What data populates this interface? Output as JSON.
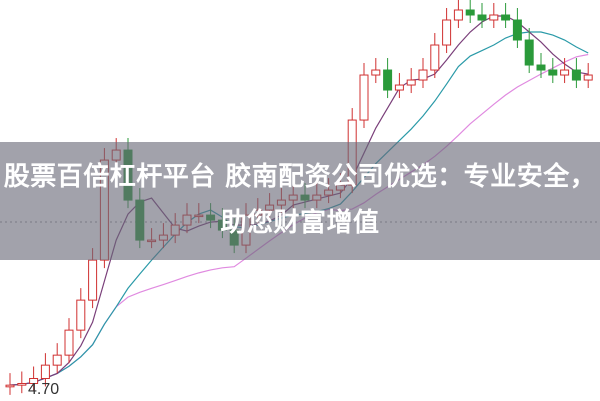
{
  "title": "股票百倍杠杆平台 胶南配资公司优选：专业安全，助您财富增值",
  "chart_data": {
    "type": "candlestick",
    "price_label": "4.70",
    "first_open": 4.74,
    "closes": [
      4.76,
      4.78,
      4.84,
      5.0,
      5.12,
      5.42,
      5.78,
      6.26,
      7.46,
      7.58,
      6.98,
      6.5,
      6.5,
      6.56,
      6.68,
      6.8,
      6.8,
      6.74,
      6.62,
      6.44,
      6.8,
      6.86,
      6.92,
      6.98,
      7.04,
      6.98,
      7.04,
      7.1,
      7.16,
      7.94,
      8.48,
      8.54,
      8.3,
      8.36,
      8.42,
      8.54,
      8.84,
      9.14,
      9.26,
      9.2,
      9.14,
      9.2,
      9.14,
      8.9,
      8.6,
      8.54,
      8.48,
      8.54,
      8.42,
      8.48
    ],
    "ylim": [
      4.57,
      9.38
    ],
    "colors": {
      "up": "#d03030",
      "down": "#2a9a3a",
      "ma5": "#7a3f7a",
      "ma10": "#2a9aa8",
      "ma20": "#e08ae0",
      "reference": "#999999"
    }
  }
}
